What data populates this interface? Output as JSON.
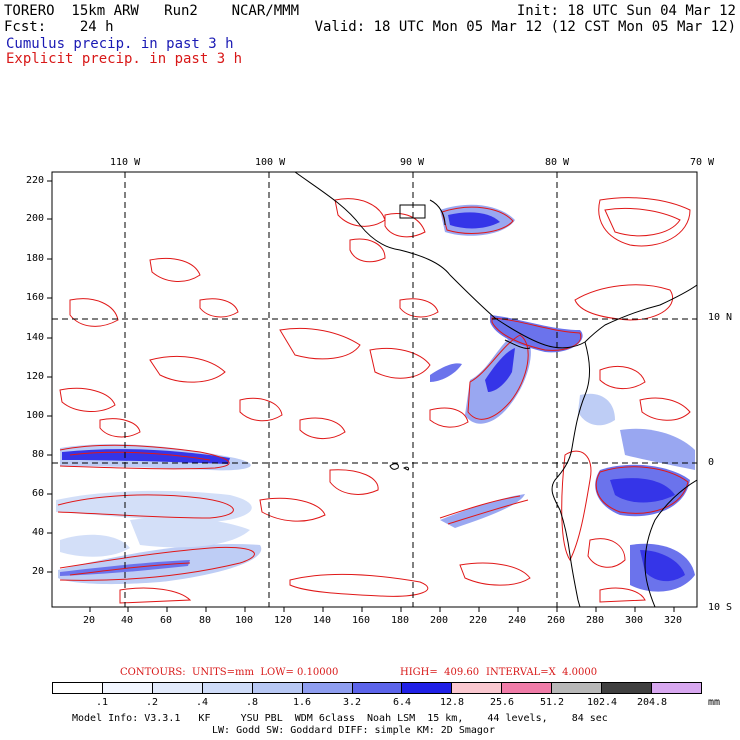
{
  "header": {
    "model": "TORERO  15km ARW   Run2    NCAR/MMM",
    "init": "Init: 18 UTC Sun 04 Mar 12",
    "fcst_label": "Fcst:    24 h",
    "valid": "Valid: 18 UTC Mon 05 Mar 12 (12 CST Mon 05 Mar 12)",
    "field_cumulus": "Cumulus precip. in past 3 h",
    "field_explicit": "Explicit precip. in past 3 h"
  },
  "map": {
    "lon_labels": [
      "110 W",
      "100 W",
      "90 W",
      "80 W",
      "70 W"
    ],
    "lat_labels": [
      "10 N",
      "0",
      "10 S"
    ],
    "y_ticks": [
      "220",
      "200",
      "180",
      "160",
      "140",
      "120",
      "100",
      "80",
      "60",
      "40",
      "20"
    ],
    "x_ticks": [
      "20",
      "40",
      "60",
      "80",
      "100",
      "120",
      "140",
      "160",
      "180",
      "200",
      "220",
      "240",
      "260",
      "280",
      "300",
      "320"
    ],
    "colors": {
      "explicit_contour": "#e01818",
      "coast": "#000000",
      "grid": "#000000"
    }
  },
  "contours_info": {
    "units_text": "CONTOURS:  UNITS=mm  LOW= 0.10000",
    "high_text": "HIGH=  409.60",
    "interval_text": "INTERVAL=X  4.0000"
  },
  "legend": {
    "ticks": [
      ".1",
      ".2",
      ".4",
      ".8",
      "1.6",
      "3.2",
      "6.4",
      "12.8",
      "25.6",
      "51.2",
      "102.4",
      "204.8"
    ],
    "unit": "mm",
    "colors": [
      "#ffffff",
      "#f2f6ff",
      "#e2eafb",
      "#cfdcf8",
      "#b8c8f4",
      "#8f9ef0",
      "#5c64ea",
      "#2020e6",
      "#fac8d0",
      "#f07ca8",
      "#b8b8b8",
      "#404040",
      "#d8a8f0"
    ]
  },
  "footer": {
    "line1": "Model Info: V3.3.1   KF     YSU PBL  WDM 6class  Noah LSM  15 km,    44 levels,    84 sec",
    "line2": "LW: Godd SW: Goddard DIFF: simple KM: 2D Smagor"
  }
}
